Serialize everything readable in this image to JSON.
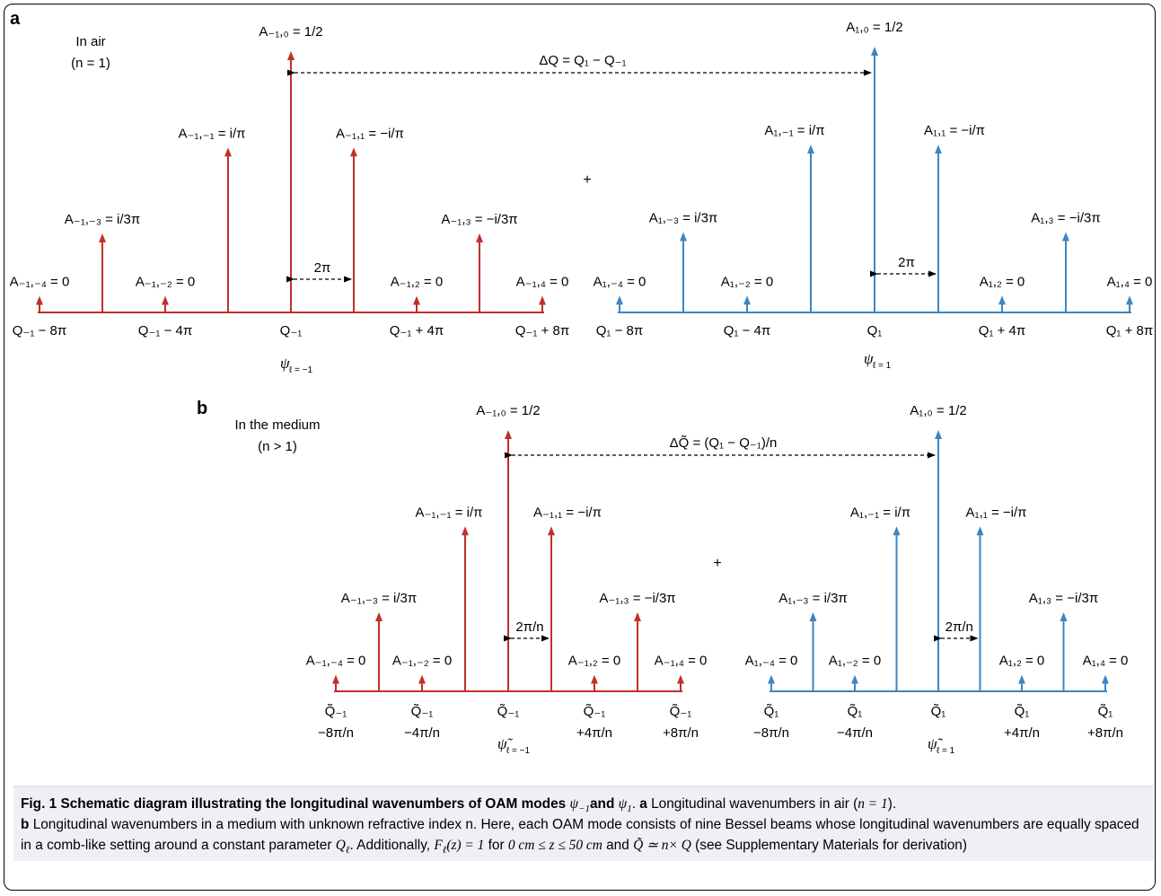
{
  "colors": {
    "left_comb": "#c0302b",
    "right_comb": "#3f85c0",
    "text": "#000000",
    "caption_bg": "#eef0f3"
  },
  "panel_a": {
    "label": "a",
    "medium_label": [
      "In air",
      "(n = 1)"
    ],
    "plus": "+",
    "left": {
      "baseline_label": "ψ",
      "baseline_label_sub": "ℓ = −1",
      "spacing_label": "2π",
      "delta_label": "ΔQ = Q₁ − Q₋₁",
      "peaks": [
        {
          "label": "A₋₁,₋₄ = 0",
          "axis": "Q₋₁ − 8π"
        },
        {
          "label": "A₋₁,₋₃ = i/3π"
        },
        {
          "label": "A₋₁,₋₂ = 0",
          "axis": "Q₋₁ − 4π"
        },
        {
          "label": "A₋₁,₋₁ = i/π"
        },
        {
          "label": "A₋₁,₀ = 1/2",
          "axis": "Q₋₁"
        },
        {
          "label": "A₋₁,₁ = −i/π"
        },
        {
          "label": "A₋₁,₂ = 0",
          "axis": "Q₋₁ + 4π"
        },
        {
          "label": "A₋₁,₃ = −i/3π"
        },
        {
          "label": "A₋₁,₄ = 0",
          "axis": "Q₋₁ + 8π"
        }
      ]
    },
    "right": {
      "baseline_label": "ψ",
      "baseline_label_sub": "ℓ = 1",
      "spacing_label": "2π",
      "peaks": [
        {
          "label": "A₁,₋₄ = 0",
          "axis": "Q₁ − 8π"
        },
        {
          "label": "A₁,₋₃ = i/3π"
        },
        {
          "label": "A₁,₋₂ = 0",
          "axis": "Q₁ − 4π"
        },
        {
          "label": "A₁,₋₁ = i/π"
        },
        {
          "label": "A₁,₀ = 1/2",
          "axis": "Q₁"
        },
        {
          "label": "A₁,₁ = −i/π"
        },
        {
          "label": "A₁,₂ = 0",
          "axis": "Q₁ + 4π"
        },
        {
          "label": "A₁,₃ = −i/3π"
        },
        {
          "label": "A₁,₄ = 0",
          "axis": "Q₁ + 8π"
        }
      ]
    }
  },
  "panel_b": {
    "label": "b",
    "medium_label": [
      "In the medium",
      "(n > 1)"
    ],
    "plus": "+",
    "left": {
      "baseline_label": "ψ̃",
      "baseline_label_sub": "ℓ = −1",
      "spacing_label": "2π/n",
      "delta_label": "ΔQ̃ = (Q₁ − Q₋₁)/n",
      "peaks": [
        {
          "label": "A₋₁,₋₄ = 0",
          "axis1": "Q̃₋₁",
          "axis2": "−8π/n"
        },
        {
          "label": "A₋₁,₋₃ = i/3π"
        },
        {
          "label": "A₋₁,₋₂ = 0",
          "axis1": "Q̃₋₁",
          "axis2": "−4π/n"
        },
        {
          "label": "A₋₁,₋₁ = i/π"
        },
        {
          "label": "A₋₁,₀ = 1/2",
          "axis1": "Q̃₋₁",
          "axis2": ""
        },
        {
          "label": "A₋₁,₁ = −i/π"
        },
        {
          "label": "A₋₁,₂ = 0",
          "axis1": "Q̃₋₁",
          "axis2": "+4π/n"
        },
        {
          "label": "A₋₁,₃ = −i/3π"
        },
        {
          "label": "A₋₁,₄ = 0",
          "axis1": "Q̃₋₁",
          "axis2": "+8π/n"
        }
      ]
    },
    "right": {
      "baseline_label": "ψ̃",
      "baseline_label_sub": "ℓ = 1",
      "spacing_label": "2π/n",
      "peaks": [
        {
          "label": "A₁,₋₄ = 0",
          "axis1": "Q̃₁",
          "axis2": "−8π/n"
        },
        {
          "label": "A₁,₋₃ = i/3π"
        },
        {
          "label": "A₁,₋₂ = 0",
          "axis1": "Q̃₁",
          "axis2": "−4π/n"
        },
        {
          "label": "A₁,₋₁ = i/π"
        },
        {
          "label": "A₁,₀ = 1/2",
          "axis1": "Q̃₁",
          "axis2": ""
        },
        {
          "label": "A₁,₁ = −i/π"
        },
        {
          "label": "A₁,₂ = 0",
          "axis1": "Q̃₁",
          "axis2": "+4π/n"
        },
        {
          "label": "A₁,₃ = −i/3π"
        },
        {
          "label": "A₁,₄ = 0",
          "axis1": "Q̃₁",
          "axis2": "+8π/n"
        }
      ]
    }
  },
  "caption": {
    "fig_label": "Fig. 1",
    "title_pre": "Schematic diagram illustrating the longitudinal wavenumbers of OAM modes",
    "title_psi_m1": "ψ",
    "title_psi_m1_sub": "−1",
    "title_and": "and",
    "title_psi_1": "ψ",
    "title_psi_1_sub": "1",
    "title_end": ".",
    "a_label": "a",
    "a_text": "Longitudinal wavenumbers in air (",
    "a_math": "n = 1",
    "a_end": ").",
    "b_label": "b",
    "b_text": "Longitudinal wavenumbers in a medium with unknown refractive index n. Here, each OAM mode consists of nine Bessel beams whose longitudinal wavenumbers are equally spaced in a comb-like setting around a constant parameter",
    "b_q": "Q",
    "b_q_sub": "ℓ",
    "b_add": ". Additionally,",
    "b_f": "F",
    "b_f_sub": "ℓ",
    "b_f_rest": "(z) = 1",
    "b_for": "for",
    "b_range": "0 cm ≤ z ≤ 50 cm",
    "b_and": "and",
    "b_rel": "Q̃ ≃ n× Q",
    "b_tail": "(see Supplementary Materials for derivation)"
  }
}
